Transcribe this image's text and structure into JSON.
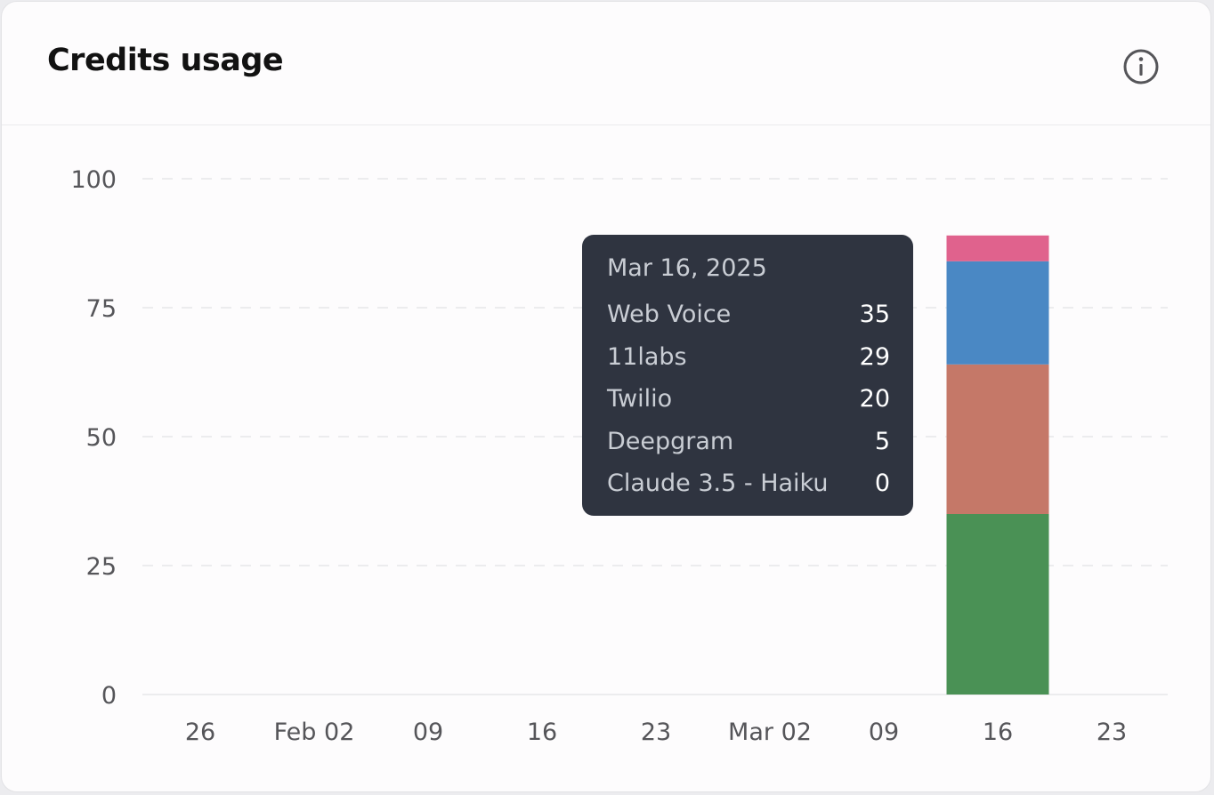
{
  "header": {
    "title": "Credits usage",
    "info_icon": "info-icon"
  },
  "chart_data": {
    "type": "bar",
    "stacked": true,
    "title": "Credits usage",
    "xlabel": "",
    "ylabel": "",
    "ylim": [
      0,
      100
    ],
    "yticks": [
      0,
      25,
      50,
      75,
      100
    ],
    "grid": true,
    "xticks": [
      "26",
      "Feb 02",
      "09",
      "16",
      "23",
      "Mar 02",
      "09",
      "16",
      "23"
    ],
    "categories": [
      "Mar 16, 2025"
    ],
    "series": [
      {
        "name": "Web Voice",
        "values": [
          35
        ],
        "color": "#4a9155"
      },
      {
        "name": "11labs",
        "values": [
          29
        ],
        "color": "#c57868"
      },
      {
        "name": "Twilio",
        "values": [
          20
        ],
        "color": "#4a88c4"
      },
      {
        "name": "Deepgram",
        "values": [
          5
        ],
        "color": "#e0628d"
      },
      {
        "name": "Claude 3.5 - Haiku",
        "values": [
          0
        ],
        "color": "#9b6fc0"
      }
    ]
  },
  "tooltip": {
    "date": "Mar 16, 2025",
    "rows": [
      {
        "label": "Web Voice",
        "value": "35"
      },
      {
        "label": "11labs",
        "value": "29"
      },
      {
        "label": "Twilio",
        "value": "20"
      },
      {
        "label": "Deepgram",
        "value": "5"
      },
      {
        "label": "Claude 3.5 - Haiku",
        "value": "0"
      }
    ]
  }
}
